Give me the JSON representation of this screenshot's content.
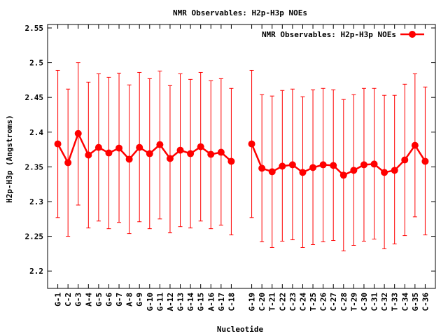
{
  "chart_data": {
    "type": "line",
    "title": "NMR Observables: H2p-H3p NOEs",
    "xlabel": "Nucleotide",
    "ylabel": "H2p-H3p (Angstroms)",
    "ylim": [
      2.175,
      2.555
    ],
    "yticks": [
      2.2,
      2.25,
      2.3,
      2.35,
      2.4,
      2.45,
      2.5,
      2.55
    ],
    "grid": false,
    "legend_position": "top-right",
    "colors": {
      "series": "#ff0000",
      "frame": "#000000"
    },
    "series": [
      {
        "name": "NMR Observables: H2p-H3p NOEs",
        "segments": [
          {
            "categories": [
              "G-1",
              "C-2",
              "G-3",
              "A-4",
              "G-5",
              "G-6",
              "G-7",
              "A-8",
              "G-9",
              "G-10",
              "G-11",
              "A-12",
              "G-13",
              "G-14",
              "G-15",
              "A-16",
              "G-17",
              "C-18"
            ],
            "values": [
              2.383,
              2.356,
              2.398,
              2.367,
              2.378,
              2.37,
              2.377,
              2.361,
              2.378,
              2.369,
              2.382,
              2.362,
              2.374,
              2.369,
              2.379,
              2.368,
              2.371,
              2.358
            ],
            "err_low": [
              2.277,
              2.25,
              2.295,
              2.262,
              2.272,
              2.261,
              2.27,
              2.254,
              2.271,
              2.261,
              2.275,
              2.255,
              2.264,
              2.262,
              2.272,
              2.261,
              2.266,
              2.252
            ],
            "err_high": [
              2.489,
              2.462,
              2.5,
              2.472,
              2.484,
              2.479,
              2.485,
              2.468,
              2.486,
              2.477,
              2.488,
              2.467,
              2.484,
              2.476,
              2.486,
              2.474,
              2.477,
              2.463
            ]
          },
          {
            "categories": [
              "G-19",
              "C-20",
              "T-21",
              "C-22",
              "C-23",
              "C-24",
              "T-25",
              "C-26",
              "C-27",
              "C-28",
              "T-29",
              "C-30",
              "C-31",
              "C-32",
              "T-33",
              "C-34",
              "G-35",
              "C-36"
            ],
            "values": [
              2.383,
              2.348,
              2.343,
              2.351,
              2.353,
              2.342,
              2.349,
              2.353,
              2.352,
              2.338,
              2.345,
              2.353,
              2.354,
              2.342,
              2.345,
              2.36,
              2.381,
              2.358
            ],
            "err_low": [
              2.277,
              2.242,
              2.234,
              2.243,
              2.245,
              2.234,
              2.238,
              2.242,
              2.244,
              2.229,
              2.237,
              2.243,
              2.246,
              2.232,
              2.239,
              2.251,
              2.278,
              2.252
            ],
            "err_high": [
              2.489,
              2.454,
              2.452,
              2.46,
              2.462,
              2.451,
              2.461,
              2.463,
              2.461,
              2.447,
              2.454,
              2.463,
              2.463,
              2.453,
              2.453,
              2.469,
              2.484,
              2.465
            ]
          }
        ]
      }
    ]
  }
}
